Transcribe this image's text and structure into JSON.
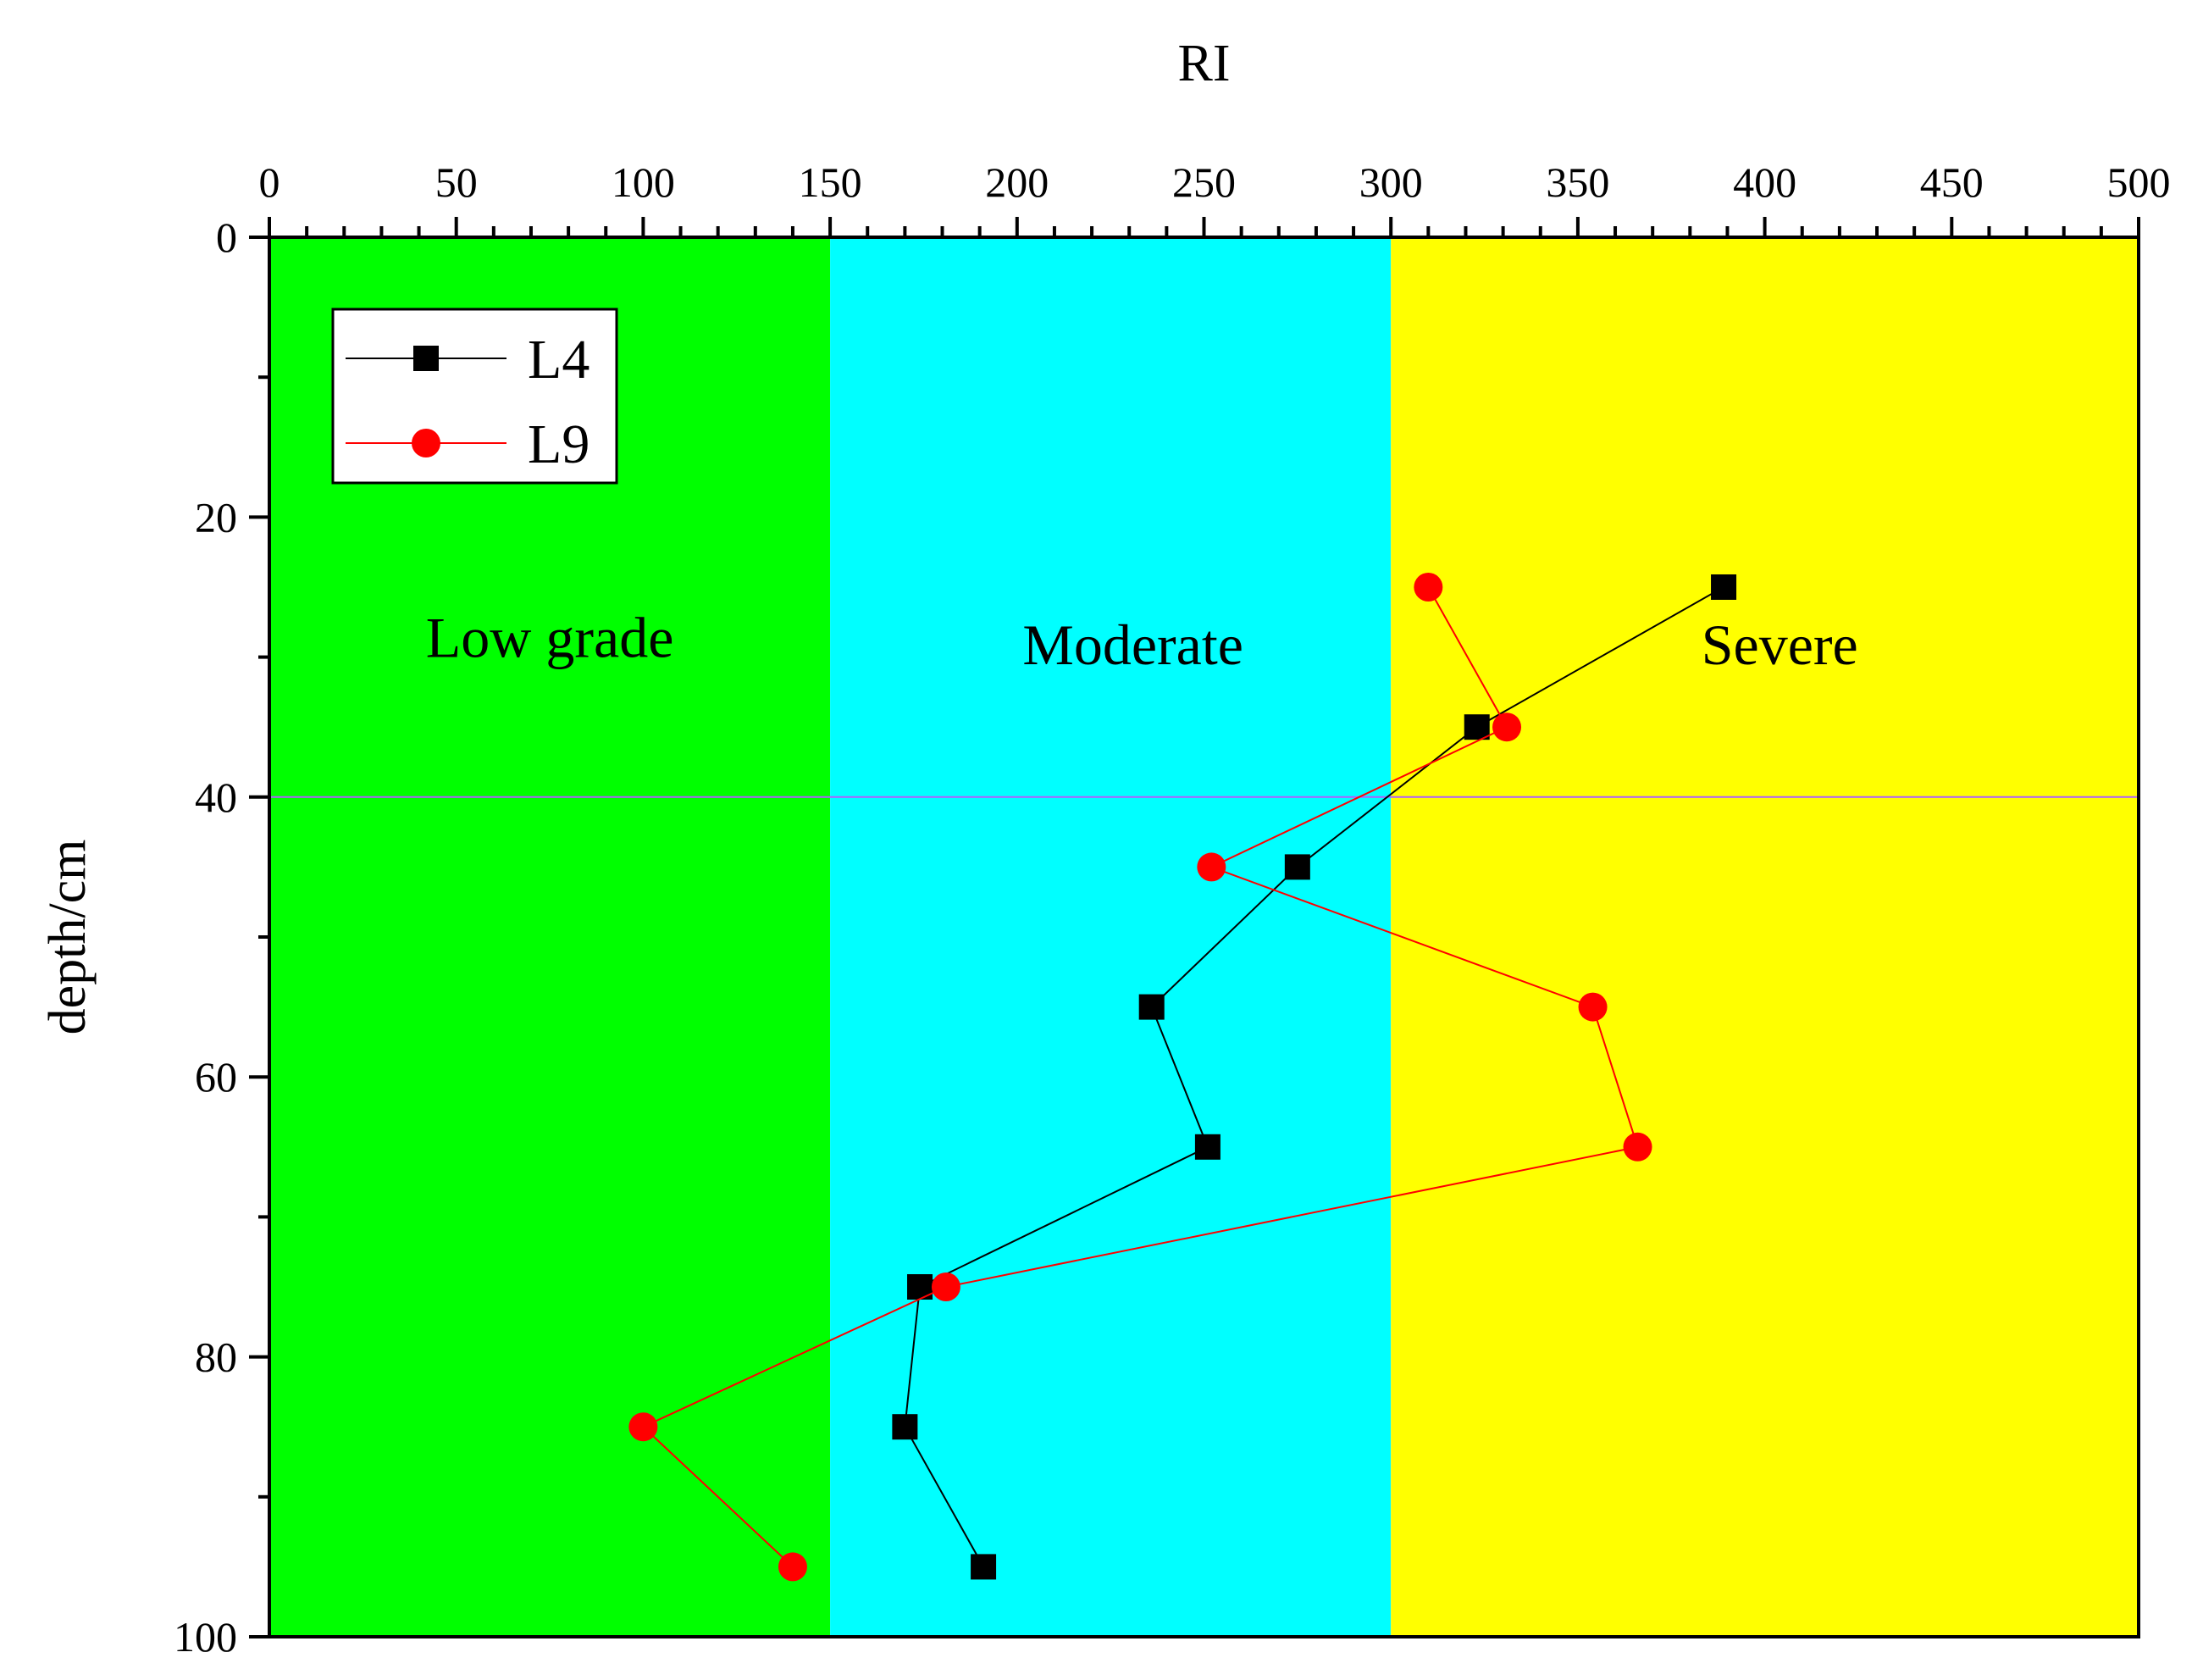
{
  "chart_data": {
    "type": "line",
    "xlabel": "RI",
    "ylabel": "depth/cm",
    "xlim": [
      0,
      500
    ],
    "ylim": [
      0,
      100
    ],
    "y_inverted": true,
    "x_axis_position": "top",
    "x_ticks": [
      "0",
      "50",
      "100",
      "150",
      "200",
      "250",
      "300",
      "350",
      "400",
      "450",
      "500"
    ],
    "y_ticks": [
      "0",
      "20",
      "40",
      "60",
      "80",
      "100"
    ],
    "zones": [
      {
        "label": "Low grade",
        "from": 0,
        "to": 150,
        "color": "#00ff00",
        "label_x": 75,
        "label_y": 30
      },
      {
        "label": "Moderate",
        "from": 150,
        "to": 300,
        "color": "#00ffff",
        "label_x": 231,
        "label_y": 30.5
      },
      {
        "label": "Severe",
        "from": 300,
        "to": 500,
        "color": "#ffff00",
        "label_x": 404,
        "label_y": 30.5
      }
    ],
    "reference_line": {
      "depth": 40,
      "color": "#b060ff"
    },
    "series": [
      {
        "name": "L4",
        "marker": "square",
        "color": "#000000",
        "x": [
          389,
          323,
          275,
          236,
          251,
          174,
          170,
          191
        ],
        "y": [
          25,
          35,
          45,
          55,
          65,
          75,
          85,
          95
        ]
      },
      {
        "name": "L9",
        "marker": "circle",
        "color": "#ff0000",
        "x": [
          310,
          331,
          252,
          354,
          366,
          181,
          100,
          140
        ],
        "y": [
          25,
          35,
          45,
          55,
          65,
          75,
          85,
          95
        ]
      }
    ],
    "legend_position": "top-left"
  }
}
